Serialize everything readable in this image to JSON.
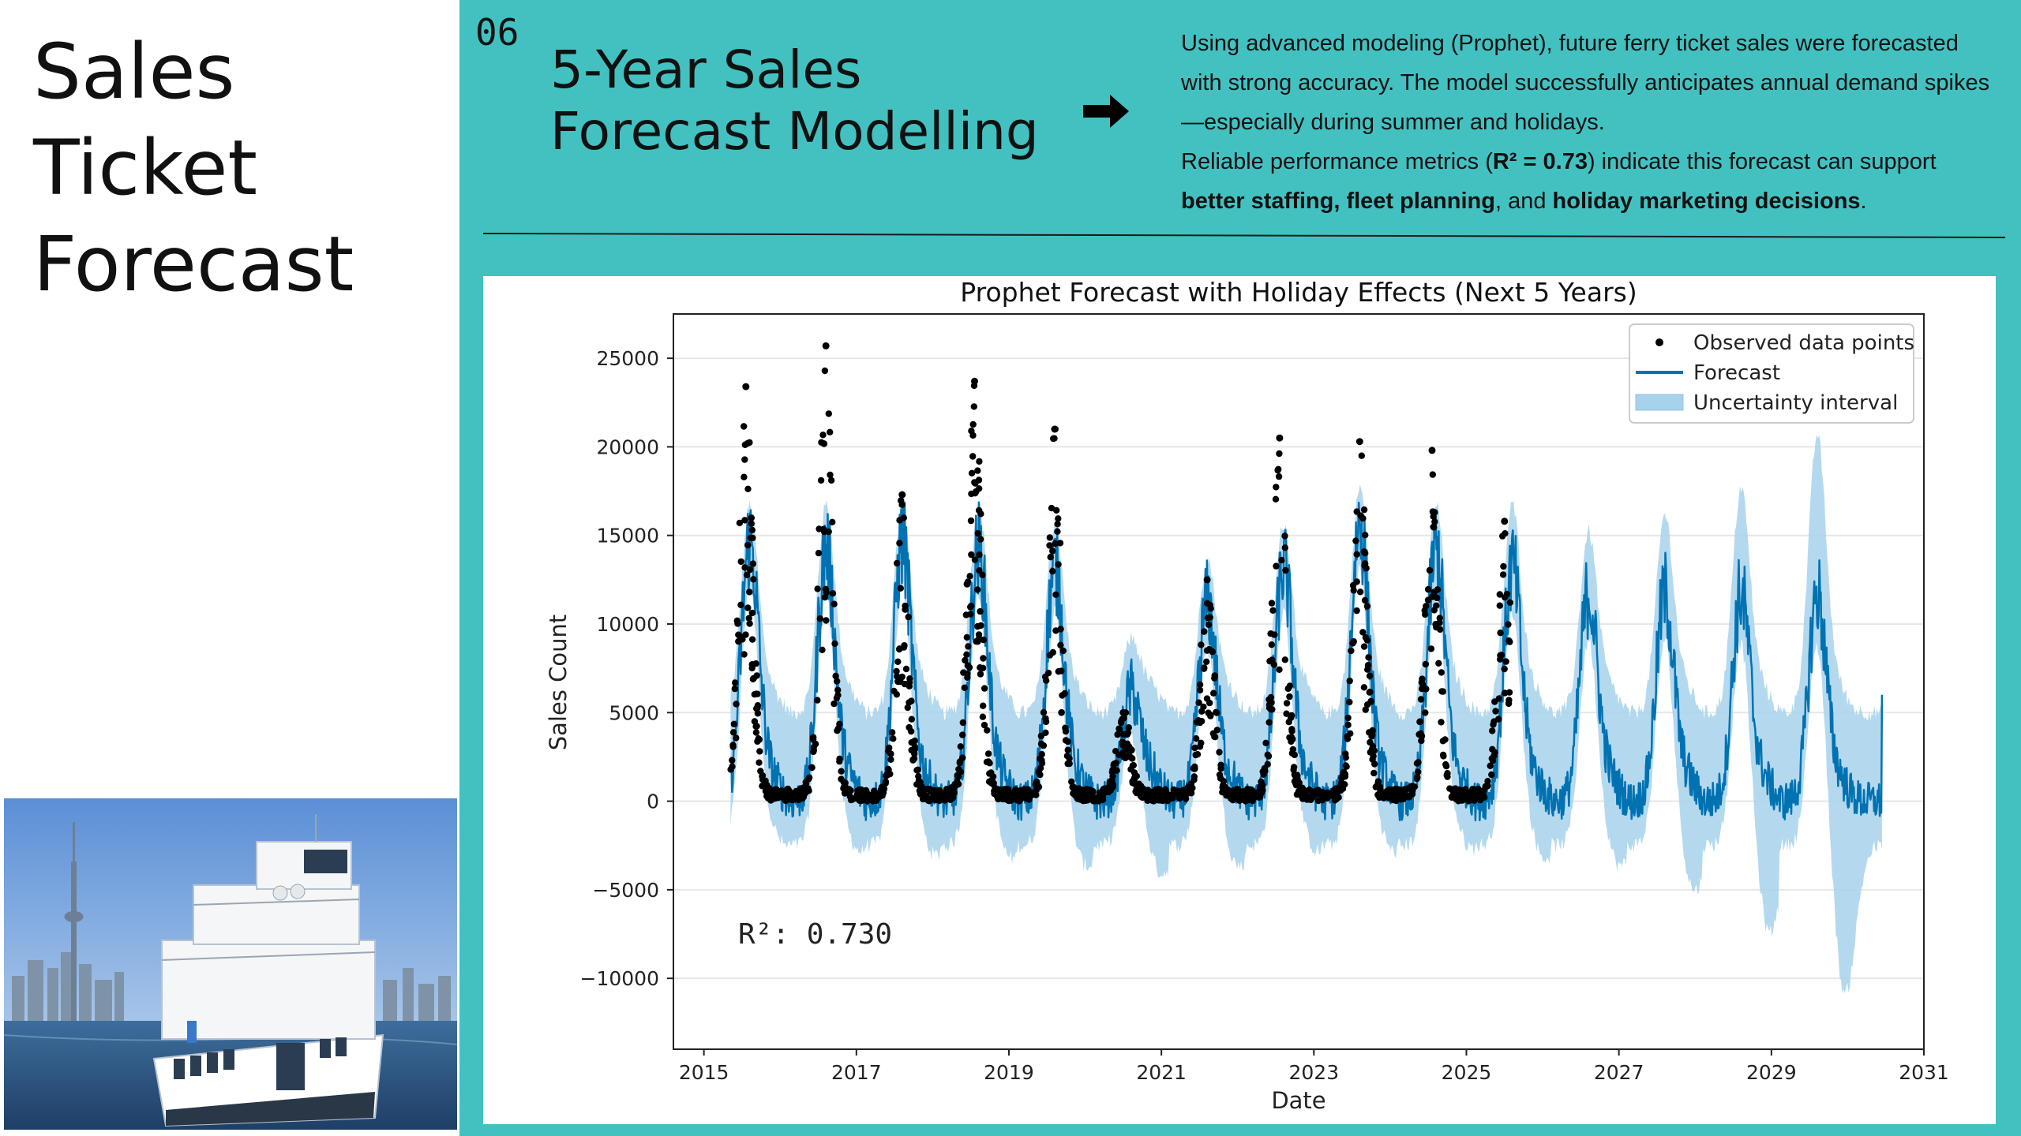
{
  "sidebar": {
    "title_lines": [
      "Sales",
      "Ticket",
      "Forecast"
    ],
    "image_icon": "ferry-photo"
  },
  "header": {
    "slide_number": "06",
    "title_lines": [
      "5-Year Sales",
      "Forecast Modelling"
    ],
    "arrow_icon": "right-arrow-icon"
  },
  "description": {
    "paragraph1": "Using advanced modeling (Prophet), future ferry ticket sales were forecasted with strong accuracy. The model successfully anticipates annual demand spikes—especially during summer and holidays.",
    "p2_part1": "Reliable performance metrics (",
    "p2_bold1": "R² = 0.73",
    "p2_part2": ") indicate this forecast can support ",
    "p2_bold2": "better staffing, fleet planning",
    "p2_part3": ", and ",
    "p2_bold3": "holiday marketing decisions",
    "p2_part4": "."
  },
  "colors": {
    "panel": "#43c1c1",
    "forecast": "#0072b2",
    "uncertainty": "#a7d2ec",
    "observed": "#000000"
  },
  "chart_data": {
    "type": "line",
    "title": "Prophet Forecast with Holiday Effects (Next 5 Years)",
    "xlabel": "Date",
    "ylabel": "Sales Count",
    "xlim": [
      2014.6,
      2031.0
    ],
    "ylim": [
      -14000,
      27500
    ],
    "x_ticks": [
      2015,
      2017,
      2019,
      2021,
      2023,
      2025,
      2027,
      2029,
      2031
    ],
    "x_tick_labels": [
      "2015",
      "2017",
      "2019",
      "2021",
      "2023",
      "2025",
      "2027",
      "2029",
      "2031"
    ],
    "y_ticks": [
      -10000,
      -5000,
      0,
      5000,
      10000,
      15000,
      20000,
      25000
    ],
    "y_tick_labels": [
      "−10000",
      "−5000",
      "0",
      "5000",
      "10000",
      "15000",
      "20000",
      "25000"
    ],
    "grid": "horizontal",
    "legend_position": "top-right",
    "legend": [
      "Observed data points",
      "Forecast",
      "Uncertainty interval"
    ],
    "annotation": "R²: 0.730",
    "observed_range": [
      2015.35,
      2025.6
    ],
    "forecast_range": [
      2015.35,
      2030.45
    ],
    "series": [
      {
        "name": "Observed data points",
        "kind": "scatter",
        "seasonal_peaks": [
          {
            "x": 2015.55,
            "y": 23400
          },
          {
            "x": 2016.6,
            "y": 25700
          },
          {
            "x": 2017.6,
            "y": 17300
          },
          {
            "x": 2018.55,
            "y": 23700
          },
          {
            "x": 2019.6,
            "y": 21000
          },
          {
            "x": 2020.5,
            "y": 5000
          },
          {
            "x": 2021.6,
            "y": 12500
          },
          {
            "x": 2022.55,
            "y": 20500
          },
          {
            "x": 2023.6,
            "y": 20300
          },
          {
            "x": 2024.55,
            "y": 19800
          },
          {
            "x": 2025.5,
            "y": 15800
          }
        ],
        "off_season_level": 0
      },
      {
        "name": "Forecast",
        "kind": "line",
        "annual_peaks": [
          {
            "x": 2015.6,
            "y": 14500
          },
          {
            "x": 2016.6,
            "y": 14000
          },
          {
            "x": 2017.6,
            "y": 14500
          },
          {
            "x": 2018.6,
            "y": 14000
          },
          {
            "x": 2019.6,
            "y": 13000
          },
          {
            "x": 2020.6,
            "y": 6000
          },
          {
            "x": 2021.6,
            "y": 11000
          },
          {
            "x": 2022.6,
            "y": 13000
          },
          {
            "x": 2023.6,
            "y": 15500
          },
          {
            "x": 2024.6,
            "y": 14000
          },
          {
            "x": 2025.6,
            "y": 13000
          },
          {
            "x": 2026.6,
            "y": 11500
          },
          {
            "x": 2027.6,
            "y": 11500
          },
          {
            "x": 2028.6,
            "y": 11500
          },
          {
            "x": 2029.6,
            "y": 11500
          }
        ],
        "trough_level": 0,
        "end": {
          "x": 2030.45,
          "y": 6000
        }
      },
      {
        "name": "Uncertainty interval",
        "kind": "band",
        "upper_peaks": [
          16500,
          16500,
          16500,
          16500,
          15500,
          9000,
          13500,
          15500,
          17500,
          16500,
          16500,
          15000,
          16000,
          17500,
          20500
        ],
        "lower_troughs": [
          -3000,
          -3500,
          -3800,
          -4000,
          -4500,
          -5000,
          -4500,
          -3500,
          -3500,
          -3200,
          -4000,
          -4500,
          -6000,
          -8500,
          -12000
        ]
      }
    ]
  }
}
